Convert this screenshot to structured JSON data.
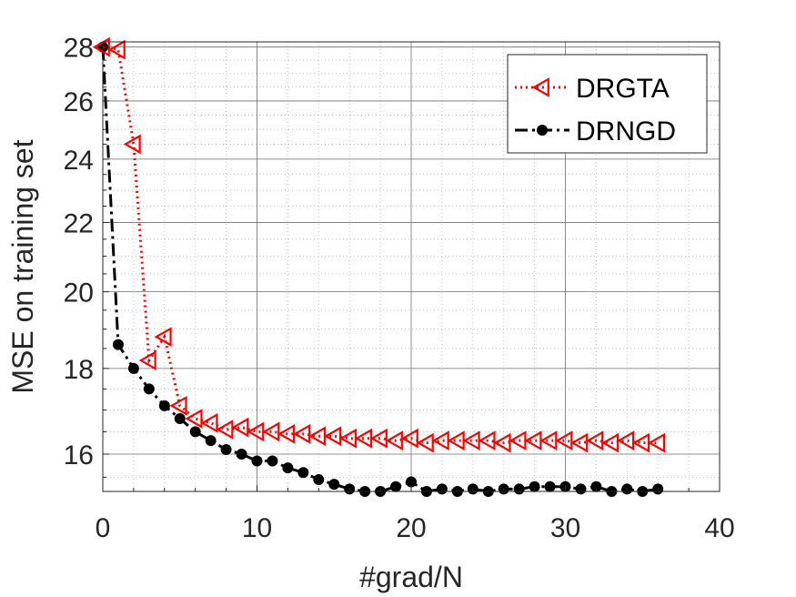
{
  "chart_data": {
    "type": "line",
    "xlabel": "#grad/N",
    "ylabel": "MSE on training set",
    "xlim": [
      0,
      40
    ],
    "ylim": [
      15.2,
      28.2
    ],
    "yscale": "log",
    "grid": "major-and-minor",
    "legend_position": "top-right",
    "x_ticks": [
      "0",
      "10",
      "20",
      "30",
      "40"
    ],
    "y_ticks": [
      "16",
      "18",
      "20",
      "22",
      "24",
      "26",
      "28"
    ],
    "series": [
      {
        "name": "DRGTA",
        "color": "#ff0000",
        "line_style": "dotted",
        "marker": "triangle-left-open",
        "x": [
          0,
          1,
          2,
          3,
          4,
          5,
          6,
          7,
          8,
          9,
          10,
          11,
          12,
          13,
          14,
          15,
          16,
          17,
          18,
          19,
          20,
          21,
          22,
          23,
          24,
          25,
          26,
          27,
          28,
          29,
          30,
          31,
          32,
          33,
          34,
          35,
          36
        ],
        "values": [
          28.0,
          27.9,
          24.5,
          18.2,
          18.8,
          17.1,
          16.8,
          16.7,
          16.55,
          16.6,
          16.5,
          16.5,
          16.45,
          16.45,
          16.4,
          16.4,
          16.35,
          16.35,
          16.35,
          16.3,
          16.35,
          16.25,
          16.3,
          16.3,
          16.3,
          16.3,
          16.25,
          16.3,
          16.3,
          16.3,
          16.3,
          16.25,
          16.3,
          16.25,
          16.3,
          16.25,
          16.25
        ]
      },
      {
        "name": "DRNGD",
        "color": "#000000",
        "line_style": "dash-dot",
        "marker": "filled-circle",
        "x": [
          0,
          1,
          2,
          3,
          4,
          5,
          6,
          7,
          8,
          9,
          10,
          11,
          12,
          13,
          14,
          15,
          16,
          17,
          18,
          19,
          20,
          21,
          22,
          23,
          24,
          25,
          26,
          27,
          28,
          29,
          30,
          31,
          32,
          33,
          34,
          35,
          36
        ],
        "values": [
          28.0,
          18.6,
          18.0,
          17.5,
          17.1,
          16.8,
          16.5,
          16.3,
          16.1,
          16.0,
          15.85,
          15.85,
          15.7,
          15.6,
          15.45,
          15.35,
          15.25,
          15.2,
          15.2,
          15.3,
          15.4,
          15.2,
          15.25,
          15.2,
          15.25,
          15.2,
          15.25,
          15.25,
          15.3,
          15.3,
          15.3,
          15.25,
          15.3,
          15.2,
          15.25,
          15.2,
          15.25
        ]
      }
    ]
  }
}
